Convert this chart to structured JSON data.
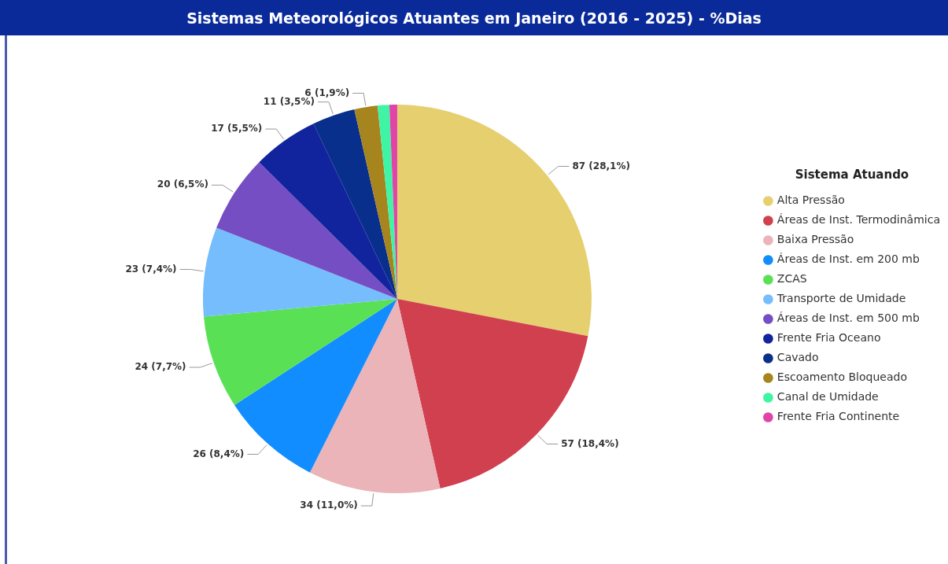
{
  "chart_data": {
    "type": "pie",
    "title": "Sistemas Meteorológicos Atuantes em Janeiro (2016 - 2025) - %Dias",
    "legend_title": "Sistema Atuando",
    "legend": "right",
    "categories": [
      "Alta Pressão",
      "Áreas de Inst. Termodinâmica",
      "Baixa Pressão",
      "Áreas de Inst. em 200 mb",
      "ZCAS",
      "Transporte de Umidade",
      "Áreas de Inst. em 500 mb",
      "Frente Fria Oceano",
      "Cavado",
      "Escoamento Bloqueado",
      "Canal de Umidade",
      "Frente Fria Continente"
    ],
    "values": [
      87,
      57,
      34,
      26,
      24,
      23,
      20,
      17,
      11,
      6,
      3,
      2
    ],
    "colors": [
      "#e6cf6f",
      "#d1404f",
      "#ebb4b8",
      "#118dff",
      "#5ae055",
      "#75bdfd",
      "#744ec2",
      "#12239e",
      "#082f8c",
      "#a6841e",
      "#3ff5a5",
      "#e044a7"
    ],
    "value_labels": [
      "87 (28,1%)",
      "57 (18,4%)",
      "34 (11,0%)",
      "26 (8,4%)",
      "24 (7,7%)",
      "23 (7,4%)",
      "20 (6,5%)",
      "17 (5,5%)",
      "11 (3,5%)",
      "6 (1,9%)",
      null,
      null
    ]
  }
}
